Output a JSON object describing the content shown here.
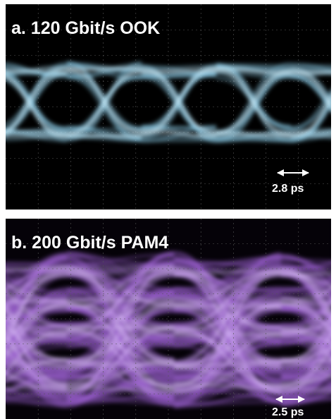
{
  "panels": [
    {
      "label": "a. 120 Gbit/s OOK",
      "scale": "2.8 ps"
    },
    {
      "label": "b. 200 Gbit/s PAM4",
      "scale": "2.5 ps"
    }
  ]
}
